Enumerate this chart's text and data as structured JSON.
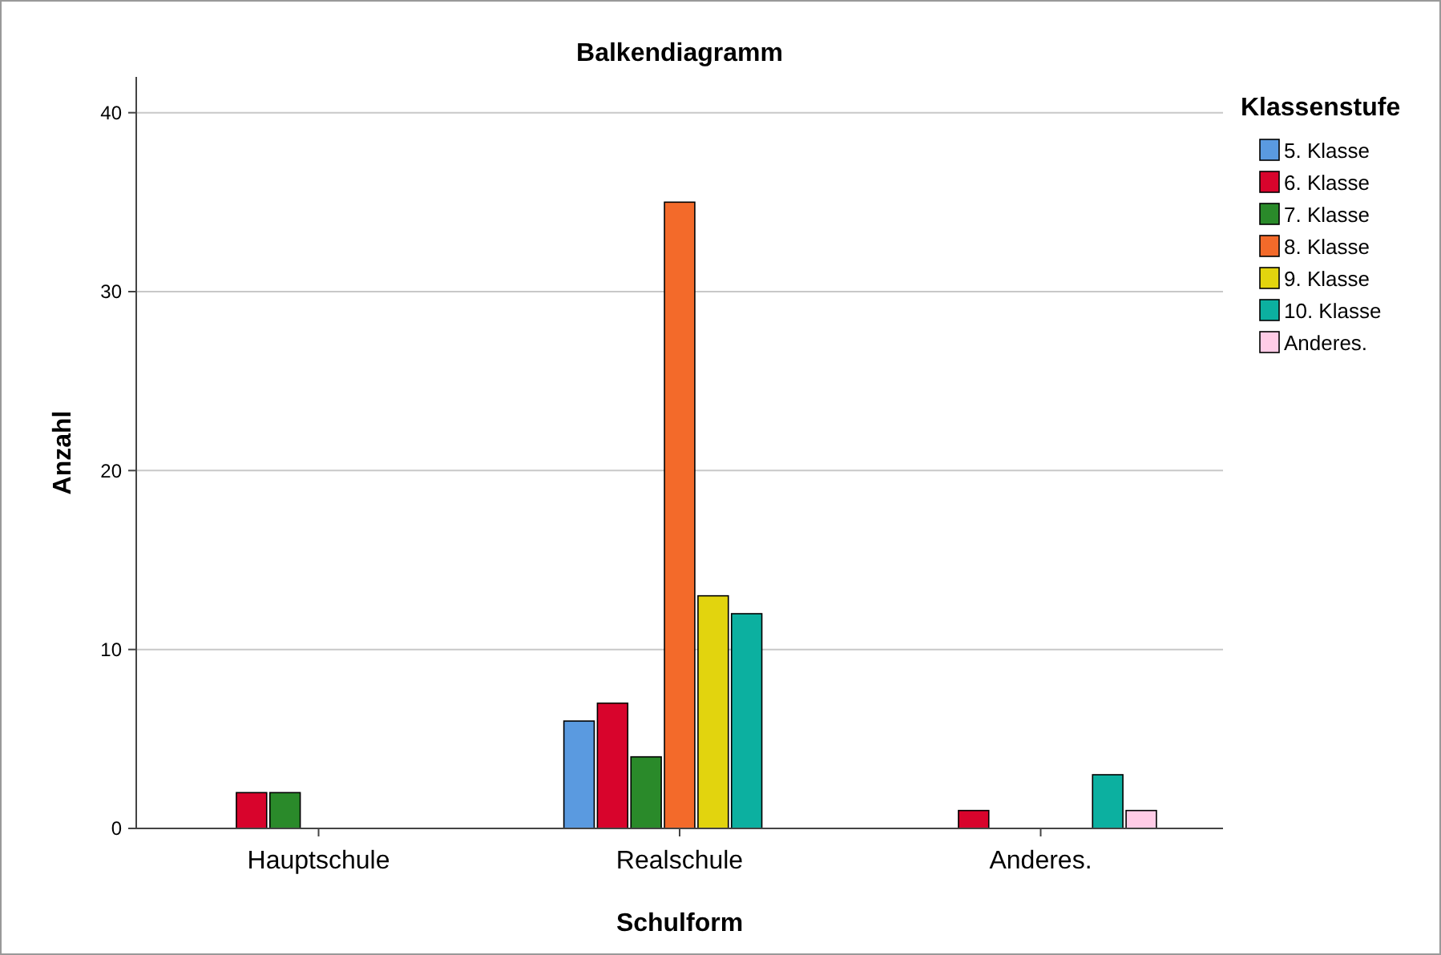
{
  "chart_data": {
    "type": "bar",
    "title": "Balkendiagramm",
    "xlabel": "Schulform",
    "ylabel": "Anzahl",
    "legend_title": "Klassenstufe",
    "categories": [
      "Hauptschule",
      "Realschule",
      "Anderes."
    ],
    "series": [
      {
        "name": "5. Klasse",
        "color": "#5a9ae0",
        "values": [
          null,
          6,
          null
        ]
      },
      {
        "name": "6. Klasse",
        "color": "#d8042c",
        "values": [
          2,
          7,
          1
        ]
      },
      {
        "name": "7. Klasse",
        "color": "#2a8a2a",
        "values": [
          2,
          4,
          null
        ]
      },
      {
        "name": "8. Klasse",
        "color": "#f36a2a",
        "values": [
          null,
          35,
          null
        ]
      },
      {
        "name": "9. Klasse",
        "color": "#e2d40e",
        "values": [
          null,
          13,
          null
        ]
      },
      {
        "name": "10. Klasse",
        "color": "#0cb0a0",
        "values": [
          null,
          12,
          3
        ]
      },
      {
        "name": "Anderes.",
        "color": "#ffcce6",
        "values": [
          null,
          null,
          1
        ]
      }
    ],
    "ylim": [
      0,
      42
    ],
    "yticks": [
      0,
      10,
      20,
      30,
      40
    ],
    "grid": "y",
    "legend": "right"
  }
}
